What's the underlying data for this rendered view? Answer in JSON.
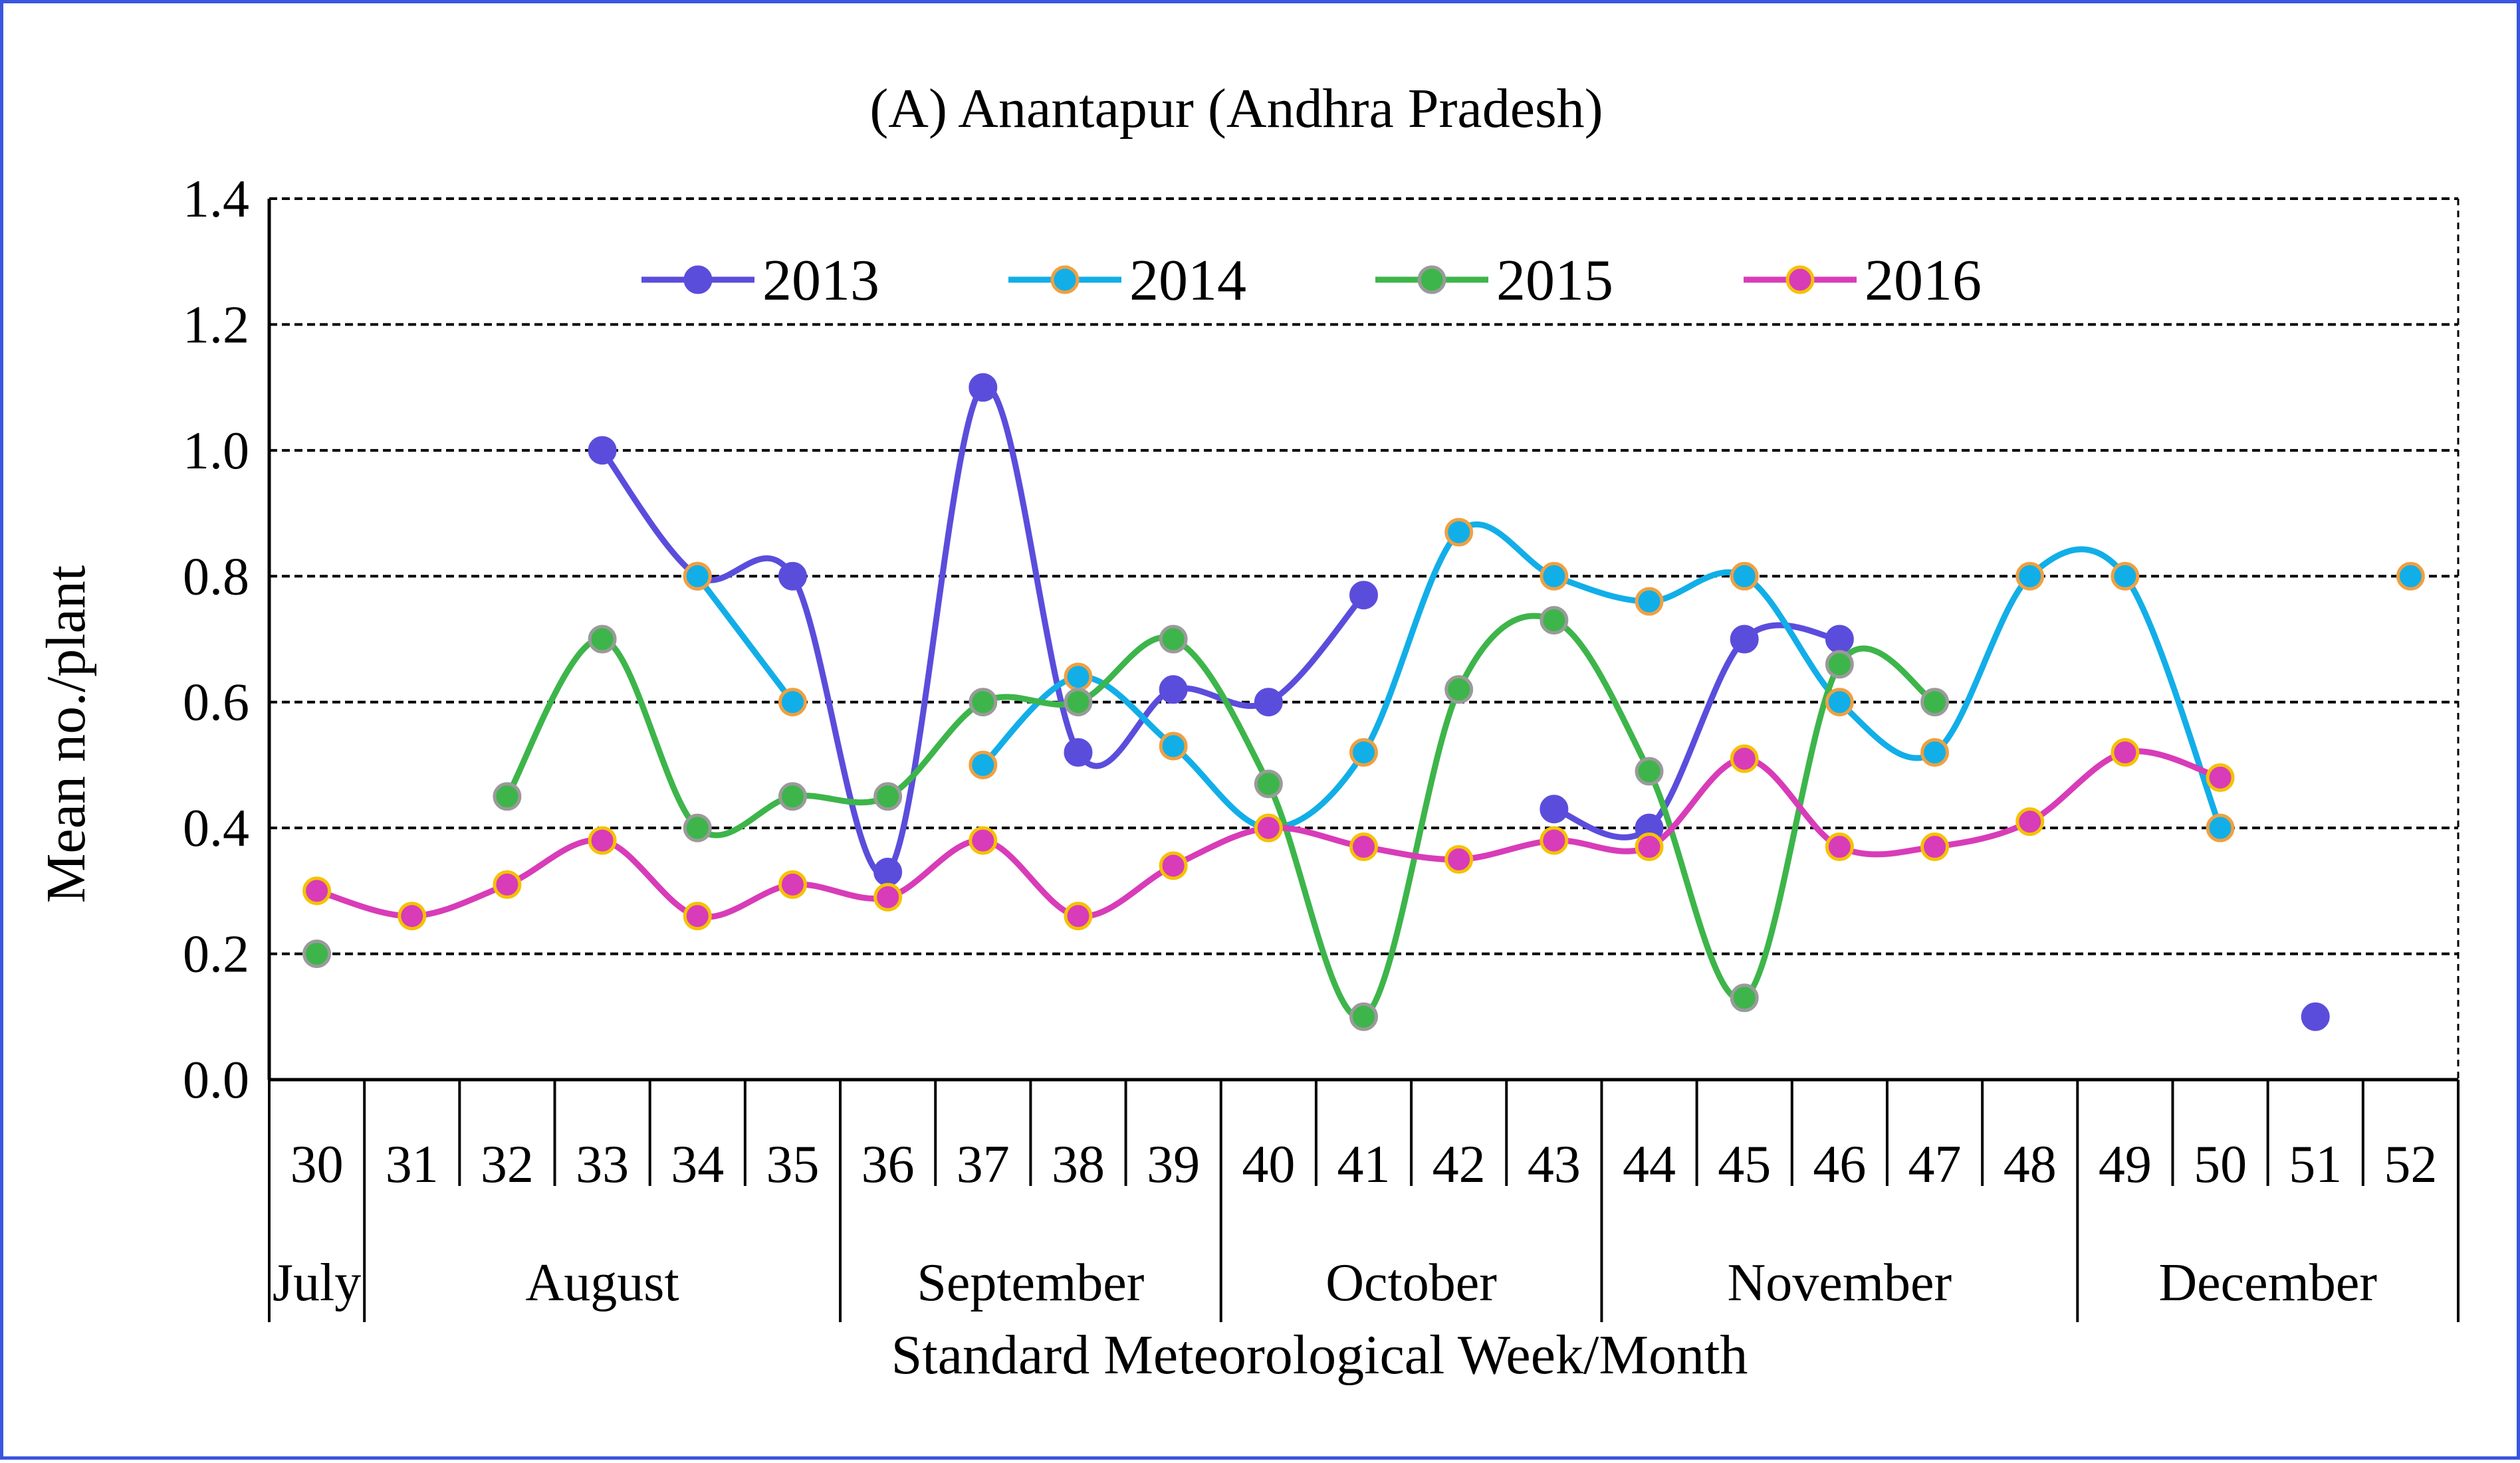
{
  "chart_data": {
    "type": "line",
    "title": "(A) Anantapur (Andhra Pradesh)",
    "xlabel": "Standard Meteorological Week/Month",
    "ylabel": "Mean no./plant",
    "ylim": [
      0,
      1.4
    ],
    "yticks": [
      "0.0",
      "0.2",
      "0.4",
      "0.6",
      "0.8",
      "1.0",
      "1.2",
      "1.4"
    ],
    "grid": true,
    "legend_position": "top",
    "weeks": [
      "30",
      "31",
      "32",
      "33",
      "34",
      "35",
      "36",
      "37",
      "38",
      "39",
      "40",
      "41",
      "42",
      "43",
      "44",
      "45",
      "46",
      "47",
      "48",
      "49",
      "50",
      "51",
      "52"
    ],
    "months": [
      {
        "label": "July",
        "start_week": 30,
        "end_week": 30
      },
      {
        "label": "August",
        "start_week": 31,
        "end_week": 35
      },
      {
        "label": "September",
        "start_week": 36,
        "end_week": 39
      },
      {
        "label": "October",
        "start_week": 40,
        "end_week": 43
      },
      {
        "label": "November",
        "start_week": 44,
        "end_week": 48
      },
      {
        "label": "December",
        "start_week": 49,
        "end_week": 52
      }
    ],
    "series": [
      {
        "name": "2013",
        "color": "#5b4ddc",
        "marker_edge": "#5b4ddc",
        "values": [
          null,
          null,
          null,
          1.0,
          0.8,
          0.8,
          0.33,
          1.1,
          0.52,
          0.62,
          0.6,
          0.77,
          null,
          0.43,
          0.4,
          0.7,
          0.7,
          null,
          null,
          null,
          null,
          0.1,
          null
        ]
      },
      {
        "name": "2014",
        "color": "#12aee8",
        "marker_edge": "#f0a040",
        "values": [
          null,
          null,
          null,
          null,
          0.8,
          0.6,
          null,
          0.5,
          0.64,
          0.53,
          0.4,
          0.52,
          0.87,
          0.8,
          0.76,
          0.8,
          0.6,
          0.52,
          0.8,
          0.8,
          0.4,
          null,
          0.8
        ]
      },
      {
        "name": "2015",
        "color": "#3db54a",
        "marker_edge": "#9a9a9a",
        "values": [
          0.2,
          null,
          0.45,
          0.7,
          0.4,
          0.45,
          0.45,
          0.6,
          0.6,
          0.7,
          0.47,
          0.1,
          0.62,
          0.73,
          0.49,
          0.13,
          0.66,
          0.6,
          null,
          null,
          null,
          null,
          null
        ]
      },
      {
        "name": "2016",
        "color": "#d83cb8",
        "marker_edge": "#f5c200",
        "values": [
          0.3,
          0.26,
          0.31,
          0.38,
          0.26,
          0.31,
          0.29,
          0.38,
          0.26,
          0.34,
          0.4,
          0.37,
          0.35,
          0.38,
          0.37,
          0.51,
          0.37,
          0.37,
          0.41,
          0.52,
          0.48,
          null,
          null
        ]
      }
    ]
  }
}
